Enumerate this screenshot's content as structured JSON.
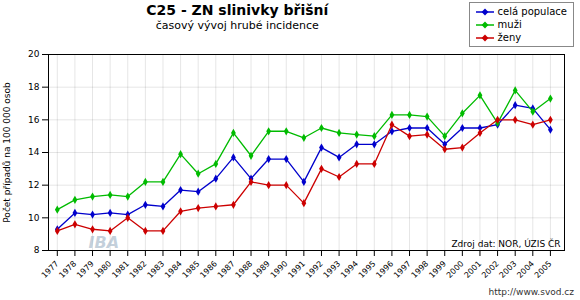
{
  "chart_data": {
    "type": "line",
    "title": "C25 - ZN slinivky břišní",
    "subtitle": "časový vývoj hrubé incidence",
    "y_label": "Počet případů na 100 000 osob",
    "annotations": [
      "Zdroj dat: NOR, ÚZIS ČR",
      "http://www.svod.cz",
      "IBA"
    ],
    "x": [
      1977,
      1978,
      1979,
      1980,
      1981,
      1982,
      1983,
      1984,
      1985,
      1986,
      1987,
      1988,
      1989,
      1990,
      1991,
      1992,
      1993,
      1994,
      1995,
      1996,
      1997,
      1998,
      1999,
      2000,
      2001,
      2002,
      2003,
      2004,
      2005
    ],
    "series": [
      {
        "name": "celá populace",
        "color": "#0000cc",
        "values": [
          9.3,
          10.3,
          10.2,
          10.3,
          10.2,
          10.8,
          10.7,
          11.7,
          11.6,
          12.4,
          13.7,
          12.4,
          13.6,
          13.6,
          12.2,
          14.3,
          13.7,
          14.5,
          14.5,
          15.3,
          15.5,
          15.5,
          14.5,
          15.5,
          15.5,
          15.7,
          16.9,
          16.7,
          15.4
        ]
      },
      {
        "name": "muži",
        "color": "#00bb00",
        "values": [
          10.5,
          11.1,
          11.3,
          11.4,
          11.3,
          12.2,
          12.2,
          13.9,
          12.7,
          13.3,
          15.2,
          13.8,
          15.3,
          15.3,
          14.9,
          15.5,
          15.2,
          15.1,
          15.0,
          16.3,
          16.3,
          16.2,
          15.0,
          16.4,
          17.5,
          15.8,
          17.8,
          16.5,
          17.3
        ]
      },
      {
        "name": "ženy",
        "color": "#cc0000",
        "values": [
          9.2,
          9.6,
          9.3,
          9.2,
          10.0,
          9.2,
          9.2,
          10.4,
          10.6,
          10.7,
          10.8,
          12.2,
          12.0,
          12.0,
          10.9,
          13.0,
          12.5,
          13.3,
          13.3,
          15.7,
          15.0,
          15.1,
          14.2,
          14.3,
          15.2,
          16.0,
          16.0,
          15.7,
          16.0
        ]
      }
    ],
    "xlim": [
      1976.5,
      2005.8
    ],
    "xticks": [
      1977,
      1978,
      1979,
      1980,
      1981,
      1982,
      1983,
      1984,
      1985,
      1986,
      1987,
      1988,
      1989,
      1990,
      1991,
      1992,
      1993,
      1994,
      1995,
      1996,
      1997,
      1998,
      1999,
      2000,
      2001,
      2002,
      2003,
      2004,
      2005
    ],
    "ylim": [
      8,
      20
    ],
    "yticks": [
      8,
      10,
      12,
      14,
      16,
      18,
      20
    ],
    "grid": true,
    "legend": "upper right",
    "marker": "diamond"
  }
}
